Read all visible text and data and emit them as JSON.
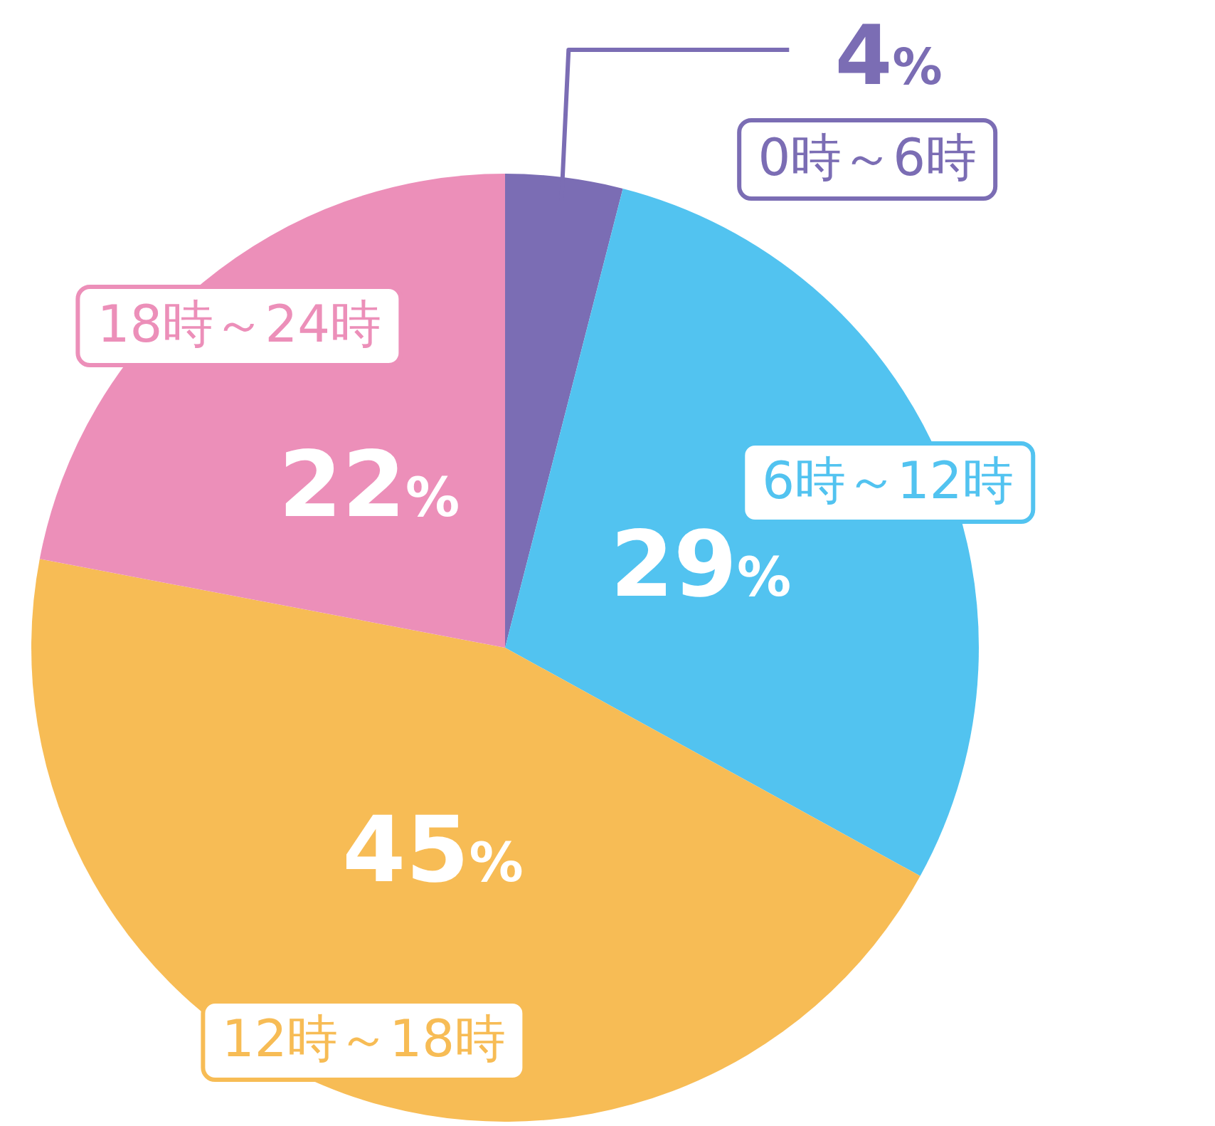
{
  "chart_data": {
    "type": "pie",
    "categories": [
      "0時～6時",
      "6時～12時",
      "12時～18時",
      "18時～24時"
    ],
    "values": [
      4,
      29,
      45,
      22
    ],
    "value_labels": [
      "4%",
      "29%",
      "45%",
      "22%"
    ],
    "colors": [
      "#7b6db4",
      "#52c3f0",
      "#f7bc55",
      "#ec8fb9"
    ]
  }
}
